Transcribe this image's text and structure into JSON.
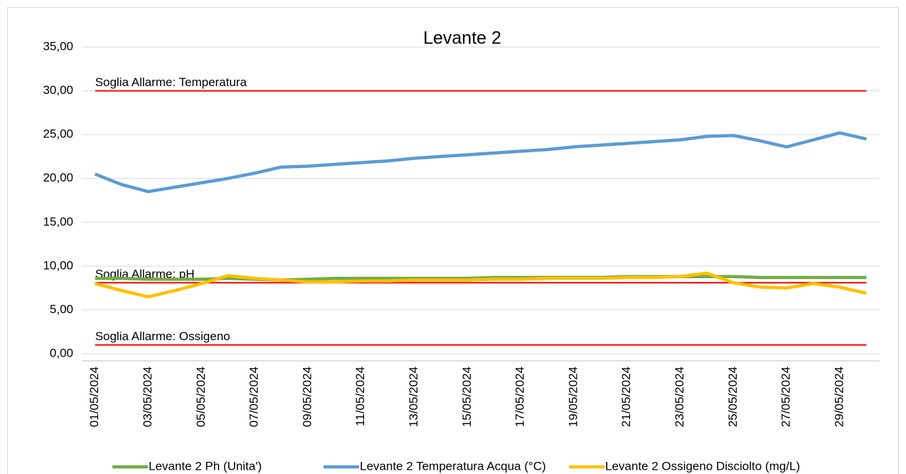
{
  "chart_data": {
    "type": "line",
    "title": "Levante 2",
    "categories": [
      "01/05/2024",
      null,
      "03/05/2024",
      null,
      "05/05/2024",
      null,
      "07/05/2024",
      null,
      "09/05/2024",
      null,
      "11/05/2024",
      null,
      "13/05/2024",
      null,
      "15/05/2024",
      null,
      "17/05/2024",
      null,
      "19/05/2024",
      null,
      "21/05/2024",
      null,
      "23/05/2024",
      null,
      "25/05/2024",
      null,
      "27/05/2024",
      null,
      "29/05/2024",
      null
    ],
    "series": [
      {
        "name": "Levante 2 Ph (Unita')",
        "color": "#70ad47",
        "values": [
          8.6,
          8.6,
          8.5,
          8.5,
          8.5,
          8.6,
          8.5,
          8.4,
          8.5,
          8.6,
          8.6,
          8.6,
          8.6,
          8.6,
          8.6,
          8.7,
          8.7,
          8.7,
          8.7,
          8.7,
          8.8,
          8.8,
          8.8,
          8.8,
          8.8,
          8.7,
          8.7,
          8.7,
          8.7,
          8.7
        ]
      },
      {
        "name": "Levante 2 Temperatura Acqua (°C)",
        "color": "#5b9bd5",
        "values": [
          20.5,
          19.3,
          18.5,
          19.0,
          19.5,
          20.0,
          20.6,
          21.3,
          21.4,
          21.6,
          21.8,
          22.0,
          22.3,
          22.5,
          22.7,
          22.9,
          23.1,
          23.3,
          23.6,
          23.8,
          24.0,
          24.2,
          24.4,
          24.8,
          24.9,
          24.3,
          23.6,
          24.4,
          25.2,
          24.5
        ]
      },
      {
        "name": "Levante 2 Ossigeno Disciolto (mg/L)",
        "color": "#ffc000",
        "values": [
          8.0,
          7.2,
          6.5,
          7.2,
          8.0,
          8.9,
          8.6,
          8.4,
          8.2,
          8.2,
          8.3,
          8.3,
          8.4,
          8.4,
          8.4,
          8.5,
          8.5,
          8.6,
          8.6,
          8.6,
          8.7,
          8.7,
          8.8,
          9.2,
          8.1,
          7.6,
          7.5,
          8.0,
          7.6,
          6.9
        ]
      }
    ],
    "thresholds": [
      {
        "label": "Soglia Allarme: Temperatura",
        "value": 30,
        "color": "#ff0000"
      },
      {
        "label": "Soglia Allarme: pH",
        "value": 8.1,
        "color": "#ff0000"
      },
      {
        "label": "Soglia Allarme: Ossigeno",
        "value": 1,
        "color": "#ff0000"
      }
    ],
    "ylim": [
      0,
      35
    ],
    "yticks": [
      {
        "value": 0,
        "label": "0,00"
      },
      {
        "value": 5,
        "label": "5,00"
      },
      {
        "value": 10,
        "label": "10,00"
      },
      {
        "value": 15,
        "label": "15,00"
      },
      {
        "value": 20,
        "label": "20,00"
      },
      {
        "value": 25,
        "label": "25,00"
      },
      {
        "value": 30,
        "label": "30,00"
      },
      {
        "value": 35,
        "label": "35,00"
      }
    ],
    "grid": true,
    "legend": "bottom"
  }
}
